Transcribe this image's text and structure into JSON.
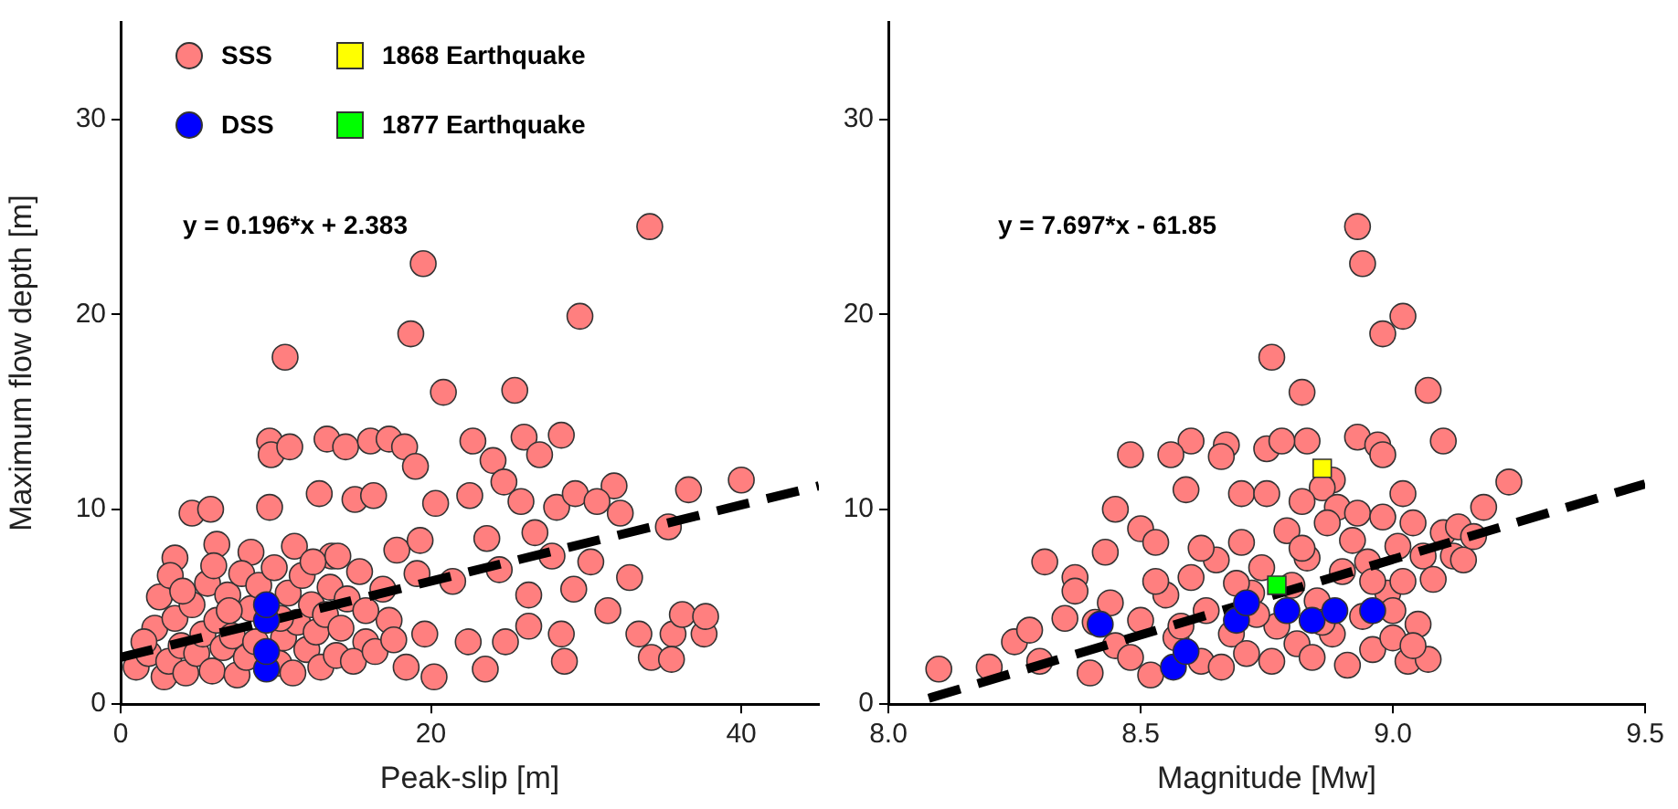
{
  "chart_data": [
    {
      "type": "scatter",
      "xlabel": "Peak-slip [m]",
      "ylabel": "Maximum flow depth [m]",
      "xlim": [
        0,
        45
      ],
      "ylim": [
        0,
        35
      ],
      "xticks": [
        0,
        20,
        40
      ],
      "yticks": [
        0,
        10,
        20,
        30
      ],
      "legend": "top left",
      "annotations": [
        "y = 0.196*x + 2.383"
      ],
      "series": [
        {
          "name": "SSS",
          "color": "#ff7f7f",
          "marker": "circle",
          "x": [
            34.1,
            19.5,
            29.6,
            18.7,
            10.6,
            20.8,
            25.4,
            9.6,
            9.7,
            10.9,
            13.3,
            14.5,
            16.1,
            17.3,
            18.3,
            22.7,
            26,
            27,
            28.4,
            24,
            19,
            24.7,
            36.6,
            40,
            31.8,
            32.2,
            35.3,
            4.6,
            5.8,
            9.6,
            12.8,
            15.1,
            16.3,
            20.3,
            22.5,
            25.8,
            28.1,
            29.3,
            30.7,
            3.5,
            6.2,
            8.4,
            11.2,
            13.6,
            17.8,
            19.3,
            23.6,
            26.7,
            27.8,
            30.3,
            32.8,
            19.1,
            21.4,
            24.4,
            26.3,
            29.2,
            31.4,
            33.4,
            35.6,
            36.2,
            34.2,
            35.5,
            37.6,
            37.7,
            28.4,
            26.3,
            24.8,
            22.4,
            23.5,
            28.6,
            19.6,
            17.3,
            15.8,
            18.4,
            20.2,
            1,
            1.8,
            2.2,
            2.8,
            3.1,
            3.5,
            3.9,
            4.2,
            4.6,
            4.9,
            5.3,
            5.6,
            5.9,
            6.2,
            6.6,
            6.9,
            7.2,
            7.5,
            7.8,
            8.1,
            8.4,
            8.7,
            8.9,
            10.2,
            10.5,
            10.8,
            11.1,
            11.4,
            11.7,
            12,
            12.3,
            12.6,
            12.9,
            13.2,
            13.5,
            13.9,
            14.2,
            14.6,
            15,
            15.4,
            15.8,
            16.4,
            16.9,
            17.6,
            2.5,
            1.5,
            3.2,
            6,
            7,
            9.9,
            10.3,
            12.4,
            14,
            4
          ],
          "values": [
            24.5,
            22.6,
            19.9,
            19,
            17.8,
            16,
            16.1,
            13.5,
            12.8,
            13.2,
            13.6,
            13.2,
            13.5,
            13.6,
            13.2,
            13.5,
            13.7,
            12.8,
            13.8,
            12.5,
            12.2,
            11.4,
            11,
            11.5,
            11.2,
            9.8,
            9.1,
            9.8,
            10,
            10.1,
            10.8,
            10.5,
            10.7,
            10.3,
            10.7,
            10.4,
            10.1,
            10.8,
            10.4,
            7.5,
            8.2,
            7.8,
            8.1,
            7.6,
            7.9,
            8.4,
            8.5,
            8.8,
            7.6,
            7.3,
            6.5,
            6.7,
            6.3,
            6.9,
            5.6,
            5.9,
            4.8,
            3.6,
            3.6,
            4.6,
            2.4,
            2.3,
            3.6,
            4.5,
            3.6,
            4,
            3.2,
            3.2,
            1.8,
            2.2,
            3.6,
            4.3,
            3.2,
            1.9,
            1.4,
            1.9,
            2.6,
            3.9,
            1.4,
            2.2,
            4.4,
            3,
            1.6,
            5.1,
            2.6,
            3.6,
            6.2,
            1.7,
            4.3,
            2.9,
            5.6,
            3.5,
            1.5,
            6.7,
            2.4,
            4.9,
            3.2,
            6.1,
            2.1,
            3.4,
            5.7,
            1.6,
            4.2,
            6.6,
            2.8,
            5.1,
            3.7,
            1.9,
            4.6,
            6,
            2.5,
            3.9,
            5.4,
            2.2,
            6.8,
            4.8,
            2.7,
            5.9,
            3.3,
            5.5,
            3.2,
            6.6,
            7.1,
            4.8,
            7,
            4.4,
            7.3,
            7.6,
            5.8
          ]
        },
        {
          "name": "DSS",
          "color": "#0000ff",
          "marker": "circle",
          "x": [
            9.4,
            9.4,
            9.4,
            9.4
          ],
          "values": [
            1.8,
            2.7,
            4.3,
            5.1
          ]
        },
        {
          "type": "line",
          "color": "#000000",
          "marker": "none",
          "line_style": "dashed",
          "x": [
            0,
            45
          ],
          "values": [
            2.4,
            11.2
          ]
        }
      ]
    },
    {
      "type": "scatter",
      "xlabel": "Magnitude [Mw]",
      "xlim": [
        8,
        9.5
      ],
      "ylim": [
        0,
        35
      ],
      "xticks": [
        {
          "value": 8,
          "label": "8.0"
        },
        8.5,
        {
          "value": 9,
          "label": "9.0"
        },
        9.5
      ],
      "legend": "left",
      "yticks": [
        0,
        10,
        20,
        30
      ],
      "annotations": [
        "y = 7.697*x - 61.85"
      ],
      "series": [
        {
          "color": "#ff7f7f",
          "marker": "circle",
          "x": [
            8.93,
            8.94,
            9.02,
            8.98,
            8.76,
            8.82,
            9.07,
            8.75,
            8.67,
            8.6,
            8.83,
            8.78,
            8.93,
            8.97,
            9.1,
            8.98,
            8.88,
            9.02,
            8.86,
            9.23,
            9.18,
            8.59,
            8.66,
            8.56,
            8.48,
            8.7,
            8.75,
            8.82,
            8.89,
            8.93,
            8.5,
            8.45,
            8.53,
            8.43,
            8.31,
            8.37,
            8.37,
            8.1,
            8.2,
            8.25,
            8.3,
            8.35,
            8.4,
            8.45,
            8.5,
            8.52,
            8.55,
            8.57,
            8.6,
            8.62,
            8.63,
            8.65,
            8.66,
            8.68,
            8.7,
            8.71,
            8.72,
            8.74,
            8.76,
            8.77,
            8.79,
            8.8,
            8.81,
            8.83,
            8.84,
            8.85,
            8.87,
            8.88,
            8.9,
            8.91,
            8.92,
            8.94,
            8.95,
            8.96,
            8.98,
            8.99,
            9,
            9.01,
            9.02,
            9.03,
            9.04,
            9.05,
            9.06,
            9.07,
            9.08,
            9.1,
            9.12,
            9.13,
            9.14,
            9.16,
            9,
            8.58,
            8.48,
            8.53,
            8.62,
            8.69,
            8.73,
            8.86,
            8.82,
            8.96,
            9.04,
            8.41,
            8.28,
            8.44
          ],
          "values": [
            24.5,
            22.6,
            19.9,
            19,
            17.8,
            16,
            16.1,
            13.1,
            13.3,
            13.5,
            13.5,
            13.5,
            13.7,
            13.3,
            13.5,
            12.8,
            11.5,
            10.8,
            11.1,
            11.4,
            10.1,
            11,
            12.7,
            12.8,
            12.8,
            10.8,
            10.8,
            10.4,
            10.1,
            9.8,
            9,
            10,
            8.3,
            7.8,
            7.3,
            6.5,
            5.8,
            1.8,
            1.9,
            3.2,
            2.2,
            4.4,
            1.6,
            3,
            4.3,
            1.5,
            5.6,
            3.4,
            6.5,
            2.2,
            4.8,
            7.4,
            1.9,
            3.6,
            8.3,
            2.6,
            5.7,
            7,
            2.2,
            4,
            8.9,
            6.1,
            3.1,
            7.5,
            2.4,
            5.3,
            9.3,
            3.6,
            6.8,
            2,
            8.4,
            4.5,
            7.3,
            2.8,
            9.6,
            5.7,
            3.4,
            8.1,
            6.3,
            2.2,
            9.3,
            4.1,
            7.6,
            2.3,
            6.4,
            8.8,
            7.6,
            9.1,
            7.4,
            8.6,
            4.8,
            4,
            2.4,
            6.3,
            8,
            6.2,
            4.6,
            4.2,
            8,
            6.3,
            3,
            4.2,
            3.8,
            5.2
          ]
        },
        {
          "color": "#0000ff",
          "marker": "circle",
          "x": [
            8.42,
            8.565,
            8.59,
            8.69,
            8.71,
            8.79,
            8.84,
            8.885,
            8.96
          ],
          "values": [
            4.1,
            1.9,
            2.7,
            4.3,
            5.2,
            4.8,
            4.3,
            4.8,
            4.8
          ]
        },
        {
          "name": "1868 Earthquake",
          "color": "#ffff00",
          "marker": "square",
          "x": [
            8.86
          ],
          "values": [
            12.1
          ]
        },
        {
          "name": "1877 Earthquake",
          "color": "#00ff00",
          "marker": "square",
          "x": [
            8.77
          ],
          "values": [
            6.1
          ]
        },
        {
          "type": "line",
          "color": "#000000",
          "marker": "none",
          "line_style": "dashed",
          "x": [
            8.08,
            9.5
          ],
          "values": [
            0.3,
            11.3
          ]
        }
      ]
    }
  ]
}
